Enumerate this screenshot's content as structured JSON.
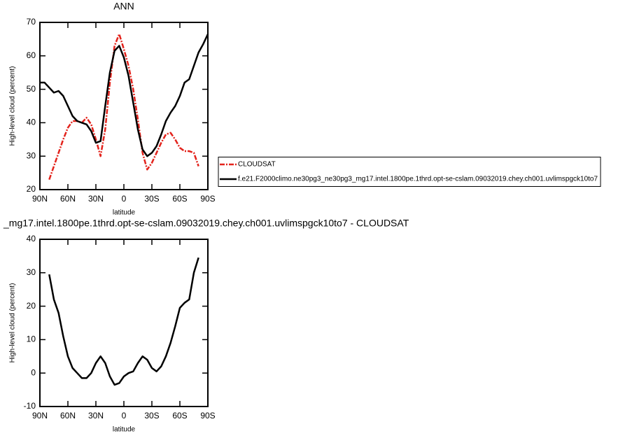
{
  "chart_data": [
    {
      "type": "line",
      "title": "ANN",
      "y_label": "High-level cloud (percent)",
      "x_label": "latitude",
      "x": [
        90,
        85,
        80,
        75,
        70,
        65,
        60,
        55,
        50,
        45,
        40,
        35,
        30,
        25,
        20,
        15,
        10,
        5,
        0,
        -5,
        -10,
        -15,
        -20,
        -25,
        -30,
        -35,
        -40,
        -45,
        -50,
        -55,
        -60,
        -65,
        -70,
        -75,
        -80,
        -85,
        -90
      ],
      "xlim": [
        90,
        -90
      ],
      "xticks": [
        {
          "value": 90,
          "label": "90N"
        },
        {
          "value": 60,
          "label": "60N"
        },
        {
          "value": 30,
          "label": "30N"
        },
        0,
        {
          "value": -30,
          "label": "30S"
        },
        {
          "value": -60,
          "label": "60S"
        },
        {
          "value": -90,
          "label": "90S"
        }
      ],
      "ylim": [
        20,
        70
      ],
      "yticks": [
        20,
        30,
        40,
        50,
        60,
        70
      ],
      "legend_position": "right",
      "series": [
        {
          "name": "CLOUDSAT",
          "color": "#e3231c",
          "linestyle": "dashed",
          "values": [
            null,
            null,
            23,
            27,
            31,
            35,
            38.5,
            40.5,
            40.5,
            40,
            41.5,
            39.5,
            35,
            30,
            38,
            52,
            63,
            66.5,
            62,
            57,
            50,
            41,
            31,
            26,
            28,
            31,
            34,
            36.5,
            37,
            35,
            32.5,
            31.5,
            31.5,
            31,
            27,
            null,
            null
          ]
        },
        {
          "name": "f.e21.F2000climo.ne30pg3_ne30pg3_mg17.intel.1800pe.1thrd.opt-se-cslam.09032019.chey.ch001.uvlimspgck10to7",
          "color": "#000000",
          "linestyle": "solid",
          "values": [
            52,
            52,
            50.5,
            49,
            49.5,
            48,
            45,
            42,
            40.5,
            40,
            39.5,
            37.5,
            34,
            34.5,
            45,
            55,
            61.5,
            63,
            59.5,
            54,
            46,
            38,
            32,
            30,
            31,
            33,
            36.5,
            40.5,
            43,
            45,
            48,
            52,
            53,
            57,
            61,
            63.5,
            66.5
          ]
        }
      ]
    },
    {
      "type": "line",
      "title": "_mg17.intel.1800pe.1thrd.opt-se-cslam.09032019.chey.ch001.uvlimspgck10to7 - CLOUDSAT",
      "y_label": "High-level cloud (percent)",
      "x_label": "latitude",
      "x": [
        90,
        85,
        80,
        75,
        70,
        65,
        60,
        55,
        50,
        45,
        40,
        35,
        30,
        25,
        20,
        15,
        10,
        5,
        0,
        -5,
        -10,
        -15,
        -20,
        -25,
        -30,
        -35,
        -40,
        -45,
        -50,
        -55,
        -60,
        -65,
        -70,
        -75,
        -80,
        -85,
        -90
      ],
      "xlim": [
        90,
        -90
      ],
      "xticks": [
        {
          "value": 90,
          "label": "90N"
        },
        {
          "value": 60,
          "label": "60N"
        },
        {
          "value": 30,
          "label": "30N"
        },
        0,
        {
          "value": -30,
          "label": "30S"
        },
        {
          "value": -60,
          "label": "60S"
        },
        {
          "value": -90,
          "label": "90S"
        }
      ],
      "ylim": [
        -10,
        40
      ],
      "yticks": [
        -10,
        0,
        10,
        20,
        30,
        40
      ],
      "color": "#000000",
      "values": [
        null,
        null,
        29.5,
        22,
        18,
        11,
        5,
        1.5,
        0,
        -1.5,
        -1.5,
        0,
        3,
        5,
        3,
        -1,
        -3.5,
        -3,
        -1,
        0,
        0.5,
        3,
        5,
        4,
        1.5,
        0.5,
        2,
        5,
        9,
        14,
        19.5,
        21,
        22,
        30,
        34.5,
        null,
        null
      ]
    }
  ]
}
